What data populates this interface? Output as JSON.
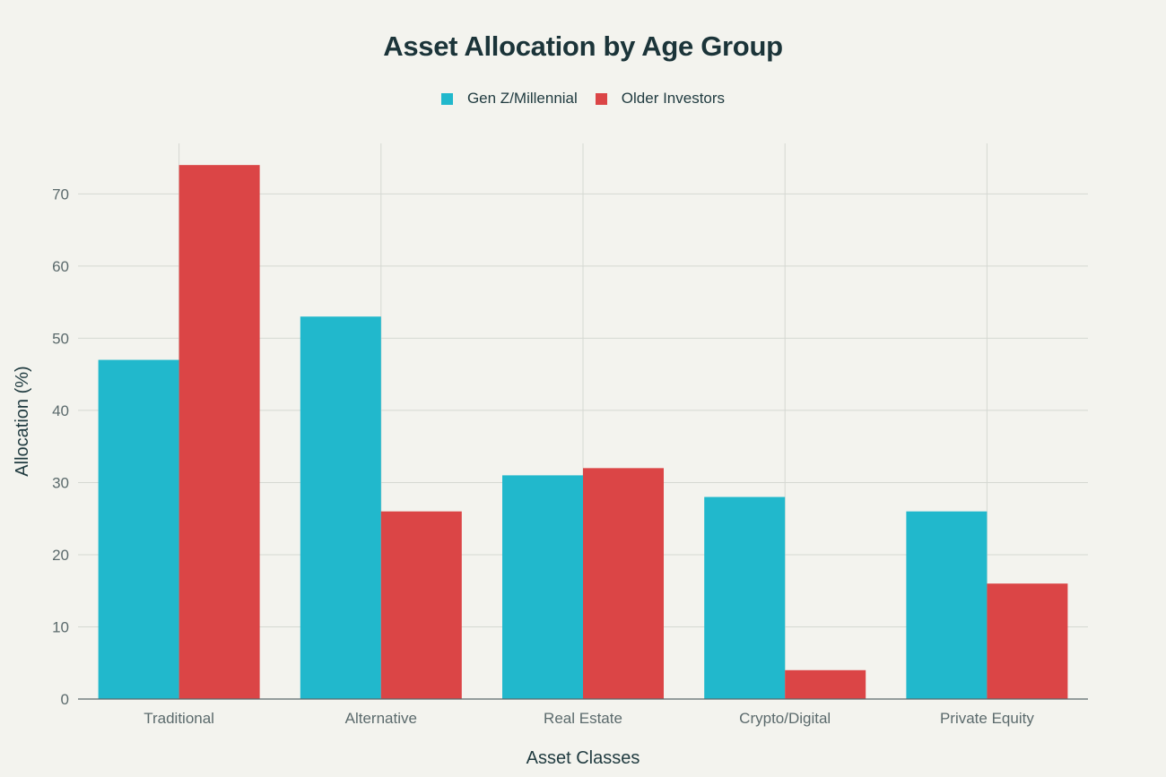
{
  "chart_data": {
    "type": "bar",
    "title": "Asset Allocation by Age Group",
    "xlabel": "Asset Classes",
    "ylabel": "Allocation (%)",
    "categories": [
      "Traditional",
      "Alternative",
      "Real Estate",
      "Crypto/Digital",
      "Private Equity"
    ],
    "series": [
      {
        "name": "Gen Z/Millennial",
        "color": "#21b8cc",
        "values": [
          47,
          53,
          31,
          28,
          26
        ]
      },
      {
        "name": "Older Investors",
        "color": "#db4546",
        "values": [
          74,
          26,
          32,
          4,
          16
        ]
      }
    ],
    "ylim": [
      0,
      77
    ],
    "yticks": [
      0,
      10,
      20,
      30,
      40,
      50,
      60,
      70
    ],
    "grid": true,
    "legend_position": "top-center"
  }
}
